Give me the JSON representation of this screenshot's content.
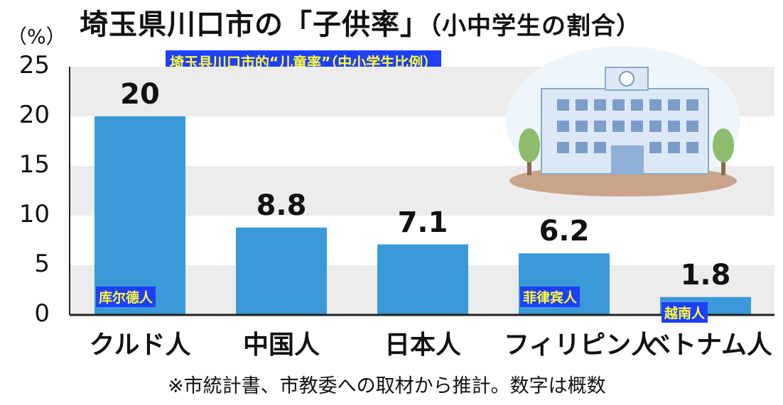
{
  "title": "埼玉県川口市の「子供率」",
  "title_sub": "（小中学生の割合）",
  "unit": "（%）",
  "cn_caption": "埼玉县川口市的“儿童率”（中小学生比例）",
  "note": "※市統計書、市教委への取材から推計。数字は概数",
  "colors": {
    "bar": "#3a9ad9",
    "band": "#ececec",
    "tag_bg": "#1f3fff",
    "tag_text": "#ffff33"
  },
  "icons": {
    "illustration": "school-building-icon"
  },
  "cn_tags": [
    "库尔德人",
    "",
    "",
    "菲律宾人",
    "越南人"
  ],
  "chart_data": {
    "type": "bar",
    "categories": [
      "クルド人",
      "中国人",
      "日本人",
      "フィリピン人",
      "ベトナム人"
    ],
    "values": [
      20,
      8.8,
      7.1,
      6.2,
      1.8
    ],
    "value_labels": [
      "20",
      "8.8",
      "7.1",
      "6.2",
      "1.8"
    ],
    "title": "埼玉県川口市の「子供率」（小中学生の割合）",
    "ylabel": "（%）",
    "ylim": [
      0,
      25
    ],
    "yticks": [
      "0",
      "5",
      "10",
      "15",
      "20",
      "25"
    ],
    "grid": "alternating bands"
  }
}
